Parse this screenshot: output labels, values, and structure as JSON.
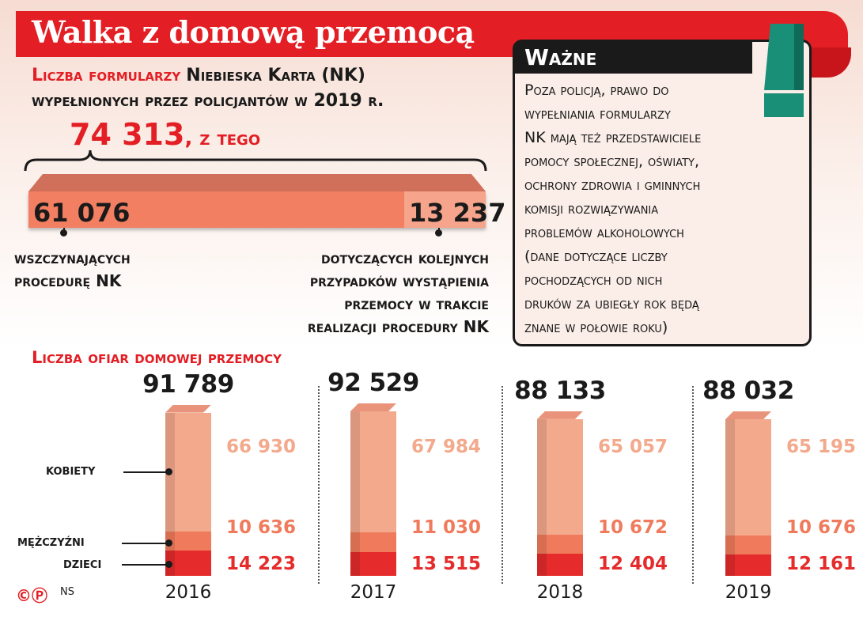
{
  "title": "Walka z domową przemocą",
  "subtitle": {
    "line1_red": "Liczba formularzy",
    "line1_black": "Niebieska Karta (NK)",
    "line2": "wypełnionych przez policjantów w 2019 r."
  },
  "total": {
    "value": "74 313",
    "suffix": ", z tego"
  },
  "breakdown": {
    "parts": [
      {
        "value": 61076,
        "label": "61 076",
        "desc": [
          "wszczynających",
          "procedurę NK"
        ]
      },
      {
        "value": 13237,
        "label": "13 237",
        "desc": [
          "dotyczących kolejnych",
          "przypadków wystąpienia",
          "przemocy w trakcie",
          "realizacji procedury NK"
        ]
      }
    ]
  },
  "note": {
    "heading": "Ważne",
    "lines": [
      "Poza policją, prawo do",
      "wypełniania formularzy",
      "NK mają też przedstawiciele",
      "pomocy społecznej, oświaty,",
      "ochrony zdrowia i gminnych",
      "komisji rozwiązywania",
      "problemów alkoholowych",
      "(dane dotyczące liczby",
      "pochodzących od nich",
      "druków za ubiegły rok będą",
      "znane w połowie roku)"
    ]
  },
  "chart_data": {
    "type": "bar",
    "title": "Liczba ofiar domowej przemocy",
    "categories": [
      "2016",
      "2017",
      "2018",
      "2019"
    ],
    "totals": [
      "91 789",
      "92 529",
      "88 133",
      "88 032"
    ],
    "series": [
      {
        "name": "kobiety",
        "values": [
          66930,
          67984,
          65057,
          65195
        ],
        "labels": [
          "66 930",
          "67 984",
          "65 057",
          "65 195"
        ],
        "color": "#f3a98c"
      },
      {
        "name": "mężczyźni",
        "values": [
          10636,
          11030,
          10672,
          10676
        ],
        "labels": [
          "10 636",
          "11 030",
          "10 672",
          "10 676"
        ],
        "color": "#f07b5c"
      },
      {
        "name": "dzieci",
        "values": [
          14223,
          13515,
          12404,
          12161
        ],
        "labels": [
          "14 223",
          "13 515",
          "12 404",
          "12 161"
        ],
        "color": "#e52b2b"
      }
    ]
  },
  "colors": {
    "accent": "#e31e24",
    "note_icon": "#1a8f78"
  },
  "footer": {
    "copyright": "©Ⓟ",
    "author": "NS"
  }
}
